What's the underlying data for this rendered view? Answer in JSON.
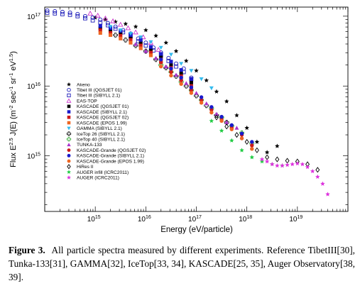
{
  "chart_data": {
    "type": "scatter",
    "xlabel": "Energy (eV/particle)",
    "ylabel": "Flux E^2.5 J(E) (m^-2 sec^-1 sr^-1 eV^1.5)",
    "ylabel_parts": {
      "main": "Flux E",
      "exp1": "2.5",
      "mid": " J(E) (m",
      "exp2": "-2",
      "mid2": " sec",
      "exp3": "-1",
      "mid3": " sr",
      "exp4": "-1",
      "mid4": " eV",
      "exp5": "1.5",
      "end": ")"
    },
    "xscale": "log",
    "yscale": "log",
    "xlim": [
      100000000000000.0,
      1e+20
    ],
    "ylim": [
      160000000000000.0,
      1.35e+17
    ],
    "x_ticks": [
      {
        "base": "10",
        "exp": "15"
      },
      {
        "base": "10",
        "exp": "16"
      },
      {
        "base": "10",
        "exp": "17"
      },
      {
        "base": "10",
        "exp": "18"
      },
      {
        "base": "10",
        "exp": "19"
      }
    ],
    "y_ticks": [
      {
        "base": "10",
        "exp": "15"
      },
      {
        "base": "10",
        "exp": "16"
      },
      {
        "base": "10",
        "exp": "17"
      }
    ],
    "legend_position": "left",
    "series": [
      {
        "name": "Akeno",
        "marker": "star",
        "color": "#000000",
        "points": [
          [
            15.0,
            16.98
          ],
          [
            15.2,
            16.95
          ],
          [
            15.4,
            16.92
          ],
          [
            15.6,
            16.89
          ],
          [
            15.8,
            16.85
          ],
          [
            16.0,
            16.8
          ],
          [
            16.2,
            16.72
          ],
          [
            16.4,
            16.62
          ],
          [
            16.6,
            16.5
          ],
          [
            16.8,
            16.36
          ],
          [
            17.0,
            16.22
          ],
          [
            17.2,
            16.08
          ],
          [
            17.4,
            15.92
          ],
          [
            17.6,
            15.78
          ],
          [
            17.8,
            15.58
          ],
          [
            18.0,
            15.4
          ],
          [
            18.2,
            15.2
          ],
          [
            18.4,
            15.05
          ],
          [
            18.6,
            15.14
          ]
        ]
      },
      {
        "name": "Tibet III (QGSJET 01)",
        "marker": "circle-open",
        "color": "#1a1ab8",
        "points": [
          [
            14.05,
            17.08
          ],
          [
            14.2,
            17.07
          ],
          [
            14.35,
            17.06
          ],
          [
            14.5,
            17.05
          ],
          [
            14.65,
            17.03
          ],
          [
            14.8,
            17.0
          ],
          [
            14.95,
            16.98
          ],
          [
            15.1,
            16.95
          ],
          [
            15.25,
            16.9
          ],
          [
            15.4,
            16.85
          ],
          [
            15.55,
            16.8
          ],
          [
            15.7,
            16.75
          ],
          [
            15.85,
            16.68
          ],
          [
            16.0,
            16.62
          ],
          [
            16.15,
            16.55
          ],
          [
            16.3,
            16.48
          ],
          [
            16.45,
            16.4
          ],
          [
            16.6,
            16.32
          ],
          [
            16.75,
            16.25
          ],
          [
            16.9,
            16.12
          ]
        ]
      },
      {
        "name": "Tibet III (SIBYLL 2.1)",
        "marker": "square-open",
        "color": "#1a1ab8",
        "points": [
          [
            14.05,
            17.05
          ],
          [
            14.2,
            17.04
          ],
          [
            14.35,
            17.03
          ],
          [
            14.5,
            17.02
          ],
          [
            14.65,
            17.0
          ],
          [
            14.8,
            16.97
          ],
          [
            14.95,
            16.94
          ],
          [
            15.1,
            16.91
          ],
          [
            15.25,
            16.87
          ],
          [
            15.4,
            16.82
          ],
          [
            15.55,
            16.77
          ],
          [
            15.7,
            16.71
          ],
          [
            15.85,
            16.64
          ],
          [
            16.0,
            16.58
          ],
          [
            16.15,
            16.51
          ],
          [
            16.3,
            16.44
          ],
          [
            16.45,
            16.36
          ],
          [
            16.6,
            16.28
          ],
          [
            16.75,
            16.2
          ],
          [
            16.9,
            16.1
          ]
        ]
      },
      {
        "name": "EAS-TOP",
        "marker": "triangle-open",
        "color": "#cc33cc",
        "points": [
          [
            14.9,
            17.04
          ],
          [
            15.05,
            17.01
          ],
          [
            15.2,
            16.97
          ],
          [
            15.35,
            16.93
          ],
          [
            15.5,
            16.88
          ],
          [
            15.65,
            16.83
          ],
          [
            15.8,
            16.77
          ],
          [
            15.95,
            16.7
          ],
          [
            16.1,
            16.62
          ],
          [
            16.25,
            16.52
          ]
        ]
      },
      {
        "name": "KASCADE (QGSJET 01)",
        "marker": "square",
        "color": "#000000",
        "points": [
          [
            15.1,
            16.83
          ],
          [
            15.3,
            16.8
          ],
          [
            15.5,
            16.76
          ],
          [
            15.7,
            16.7
          ],
          [
            15.9,
            16.62
          ],
          [
            16.1,
            16.52
          ],
          [
            16.3,
            16.42
          ],
          [
            16.5,
            16.3
          ],
          [
            16.7,
            16.18
          ],
          [
            16.9,
            16.05
          ]
        ]
      },
      {
        "name": "KASCADE (SIBYLL 2.1)",
        "marker": "square",
        "color": "#1a1acc",
        "points": [
          [
            15.1,
            16.86
          ],
          [
            15.3,
            16.83
          ],
          [
            15.5,
            16.79
          ],
          [
            15.7,
            16.73
          ],
          [
            15.9,
            16.66
          ],
          [
            16.1,
            16.56
          ],
          [
            16.3,
            16.46
          ],
          [
            16.5,
            16.35
          ],
          [
            16.7,
            16.23
          ],
          [
            16.9,
            16.1
          ]
        ]
      },
      {
        "name": "KASCADE (QGSJET 02)",
        "marker": "square",
        "color": "#cc1a1a",
        "points": [
          [
            15.1,
            16.8
          ],
          [
            15.3,
            16.76
          ],
          [
            15.5,
            16.72
          ],
          [
            15.7,
            16.66
          ],
          [
            15.9,
            16.58
          ],
          [
            16.1,
            16.48
          ],
          [
            16.3,
            16.38
          ],
          [
            16.5,
            16.26
          ],
          [
            16.7,
            16.14
          ],
          [
            16.9,
            16.0
          ]
        ]
      },
      {
        "name": "KASCADE (EPOS 1.99)",
        "marker": "square",
        "color": "#ee6622",
        "points": [
          [
            15.1,
            16.76
          ],
          [
            15.3,
            16.73
          ],
          [
            15.5,
            16.68
          ],
          [
            15.7,
            16.62
          ],
          [
            15.9,
            16.54
          ],
          [
            16.1,
            16.44
          ],
          [
            16.3,
            16.34
          ],
          [
            16.5,
            16.22
          ],
          [
            16.7,
            16.1
          ],
          [
            16.9,
            15.96
          ]
        ]
      },
      {
        "name": "GAMMA (SIBYLL 2.1)",
        "marker": "triangle-down",
        "color": "#33bbee",
        "points": [
          [
            15.3,
            16.85
          ],
          [
            15.5,
            16.8
          ],
          [
            15.7,
            16.75
          ],
          [
            15.9,
            16.7
          ],
          [
            16.1,
            16.63
          ],
          [
            16.3,
            16.55
          ],
          [
            16.5,
            16.45
          ],
          [
            16.7,
            16.32
          ],
          [
            16.9,
            16.22
          ],
          [
            17.1,
            16.1
          ],
          [
            17.3,
            15.97
          ]
        ]
      },
      {
        "name": "IceTop 26 (SIBYLL 2.1)",
        "marker": "cross-open",
        "color": "#111111",
        "points": [
          [
            15.4,
            16.73
          ],
          [
            15.6,
            16.66
          ],
          [
            15.8,
            16.58
          ],
          [
            16.0,
            16.5
          ],
          [
            16.2,
            16.38
          ],
          [
            16.4,
            16.26
          ],
          [
            16.6,
            16.14
          ],
          [
            16.8,
            16.0
          ],
          [
            17.0,
            15.86
          ],
          [
            17.2,
            15.72
          ],
          [
            17.4,
            15.58
          ],
          [
            17.6,
            15.48
          ]
        ]
      },
      {
        "name": "IceTop 40 (SIBYLL 2.1)",
        "marker": "cross-open",
        "color": "#33aa33",
        "points": [
          [
            16.3,
            16.3
          ],
          [
            16.5,
            16.2
          ],
          [
            16.7,
            16.06
          ],
          [
            16.9,
            15.94
          ],
          [
            17.1,
            15.8
          ],
          [
            17.3,
            15.68
          ],
          [
            17.5,
            15.55
          ],
          [
            17.7,
            15.43
          ],
          [
            17.9,
            15.33
          ],
          [
            18.1,
            15.18
          ]
        ]
      },
      {
        "name": "TUNKA-133",
        "marker": "triangle",
        "color": "#aa33cc",
        "points": [
          [
            15.8,
            16.6
          ],
          [
            16.0,
            16.5
          ],
          [
            16.2,
            16.4
          ],
          [
            16.4,
            16.28
          ],
          [
            16.6,
            16.16
          ],
          [
            16.8,
            16.04
          ],
          [
            17.0,
            15.9
          ],
          [
            17.2,
            15.75
          ],
          [
            17.4,
            15.6
          ],
          [
            17.6,
            15.48
          ],
          [
            17.8,
            15.4
          ]
        ]
      },
      {
        "name": "KASCADE-Grande (QGSJET 02)",
        "marker": "circle",
        "color": "#cc1a1a",
        "points": [
          [
            16.3,
            16.34
          ],
          [
            16.5,
            16.2
          ],
          [
            16.7,
            16.08
          ],
          [
            16.9,
            15.94
          ],
          [
            17.1,
            15.8
          ],
          [
            17.3,
            15.66
          ],
          [
            17.5,
            15.52
          ],
          [
            17.7,
            15.4
          ],
          [
            17.9,
            15.3
          ],
          [
            18.1,
            15.15
          ]
        ]
      },
      {
        "name": "KASCADE-Grande (SIBYLL 2.1)",
        "marker": "circle",
        "color": "#1a1acc",
        "points": [
          [
            16.3,
            16.38
          ],
          [
            16.5,
            16.25
          ],
          [
            16.7,
            16.12
          ],
          [
            16.9,
            15.98
          ],
          [
            17.1,
            15.84
          ],
          [
            17.3,
            15.7
          ],
          [
            17.5,
            15.56
          ],
          [
            17.7,
            15.44
          ],
          [
            17.9,
            15.32
          ],
          [
            18.1,
            15.2
          ]
        ]
      },
      {
        "name": "KASCADE-Grande (EPOS 1.99)",
        "marker": "circle",
        "color": "#ee6622",
        "points": [
          [
            16.3,
            16.28
          ],
          [
            16.5,
            16.15
          ],
          [
            16.7,
            16.03
          ],
          [
            16.9,
            15.9
          ],
          [
            17.1,
            15.76
          ],
          [
            17.3,
            15.62
          ],
          [
            17.5,
            15.5
          ],
          [
            17.7,
            15.38
          ],
          [
            17.9,
            15.25
          ],
          [
            18.1,
            15.1
          ]
        ]
      },
      {
        "name": "HiRes II",
        "marker": "diamond-open",
        "color": "#000000",
        "points": [
          [
            17.4,
            15.55
          ],
          [
            17.6,
            15.42
          ],
          [
            17.8,
            15.3
          ],
          [
            18.0,
            15.2
          ],
          [
            18.2,
            15.08
          ],
          [
            18.4,
            14.98
          ],
          [
            18.6,
            14.95
          ],
          [
            18.8,
            14.93
          ],
          [
            19.0,
            14.92
          ],
          [
            19.2,
            14.88
          ],
          [
            19.4,
            14.8
          ]
        ]
      },
      {
        "name": "AUGER infill (ICRC2011)",
        "marker": "star",
        "color": "#22cc44",
        "points": [
          [
            17.3,
            15.5
          ],
          [
            17.5,
            15.36
          ],
          [
            17.7,
            15.22
          ],
          [
            17.9,
            15.08
          ],
          [
            18.1,
            14.98
          ],
          [
            18.3,
            14.92
          ],
          [
            18.5,
            14.88
          ],
          [
            18.7,
            14.86
          ]
        ]
      },
      {
        "name": "AUGER (ICRC2011)",
        "marker": "star",
        "color": "#dd33dd",
        "points": [
          [
            18.3,
            14.95
          ],
          [
            18.4,
            14.92
          ],
          [
            18.5,
            14.88
          ],
          [
            18.6,
            14.86
          ],
          [
            18.7,
            14.86
          ],
          [
            18.8,
            14.87
          ],
          [
            18.9,
            14.88
          ],
          [
            19.0,
            14.89
          ],
          [
            19.1,
            14.88
          ],
          [
            19.2,
            14.84
          ],
          [
            19.3,
            14.78
          ],
          [
            19.4,
            14.7
          ],
          [
            19.5,
            14.6
          ],
          [
            19.6,
            14.45
          ]
        ]
      }
    ]
  },
  "caption": {
    "figure_label": "Figure 3.",
    "text": "All particle spectra measured by different experiments. Reference TibetIII[30], Tunka-133[31], GAMMA[32], IceTop[33, 34], KASCADE[25, 35], Auger Observatory[38, 39]."
  }
}
